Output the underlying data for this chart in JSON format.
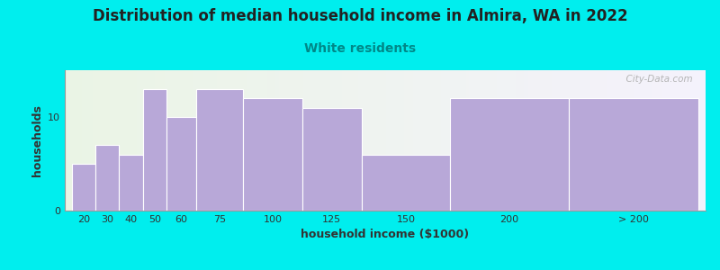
{
  "title": "Distribution of median household income in Almira, WA in 2022",
  "subtitle": "White residents",
  "xlabel": "household income ($1000)",
  "ylabel": "households",
  "title_fontsize": 12,
  "subtitle_fontsize": 10,
  "subtitle_color": "#008888",
  "background_color": "#00eeee",
  "bar_color": "#b8a8d8",
  "bar_edge_color": "#ffffff",
  "categories": [
    "20",
    "30",
    "40",
    "50",
    "60",
    "75",
    "100",
    "125",
    "150",
    "200",
    "> 200"
  ],
  "values": [
    5,
    7,
    6,
    13,
    10,
    13,
    12,
    11,
    6,
    12,
    12
  ],
  "lefts": [
    15,
    25,
    35,
    45,
    55,
    67.5,
    87.5,
    112.5,
    137.5,
    175,
    225
  ],
  "rights": [
    25,
    35,
    45,
    55,
    67.5,
    87.5,
    112.5,
    137.5,
    175,
    225,
    280
  ],
  "ylim": [
    0,
    15
  ],
  "yticks": [
    0,
    10
  ],
  "xlim": [
    12,
    283
  ],
  "watermark": "  City-Data.com"
}
